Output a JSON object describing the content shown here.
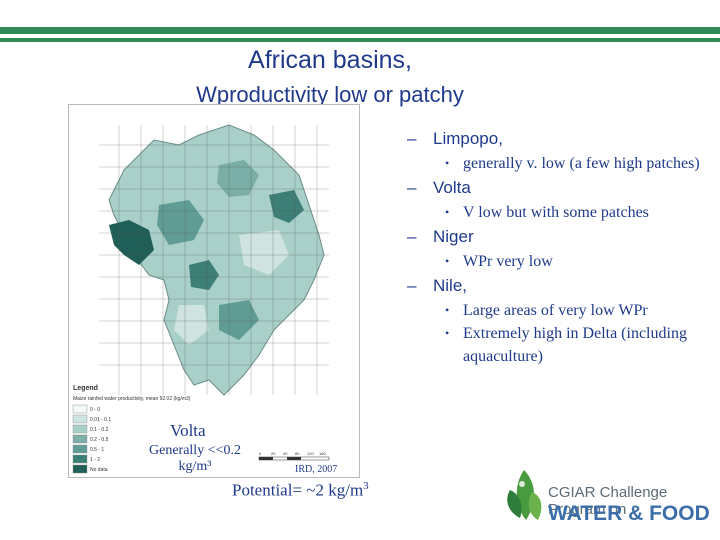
{
  "slide": {
    "title": "African basins,",
    "subtitle": "Wproductivity low or patchy"
  },
  "bullets": [
    {
      "label": "Limpopo,",
      "subs": [
        "generally v. low (a few high patches)"
      ]
    },
    {
      "label": "Volta",
      "subs": [
        "V low but with some patches"
      ]
    },
    {
      "label": "Niger",
      "subs": [
        "WPr very low"
      ]
    },
    {
      "label": "Nile,",
      "subs": [
        "Large areas of very low WPr",
        "Extremely high in Delta (including aquaculture)"
      ]
    }
  ],
  "map": {
    "legend_title": "Legend",
    "legend_subtitle": "Maize rainfed water productivity, mean 92.02 (kg/m3)",
    "legend_items": [
      "0 - 0",
      "0.01 - 0.1",
      "0.1 - 0.2",
      "0.2 - 0.5",
      "0.5 - 1",
      "1 - 2",
      "No data"
    ],
    "scale_labels": [
      "0",
      "20",
      "40",
      "80",
      "120",
      "160"
    ],
    "volta_label": "Volta",
    "generally_line1": "Generally <<0.2",
    "generally_line2": "kg/m³",
    "credit": "IRD, 2007"
  },
  "potential": {
    "text": "Potential= ~2 kg/m",
    "sup": "3"
  },
  "logo": {
    "line1": "CGIAR Challenge Program on",
    "line2": "WATER & FOOD"
  },
  "colors": {
    "stripe": "#2e8b57",
    "text": "#1f3a8a",
    "map_dark": "#1f5f57",
    "map_light": "#cfe3e0"
  }
}
